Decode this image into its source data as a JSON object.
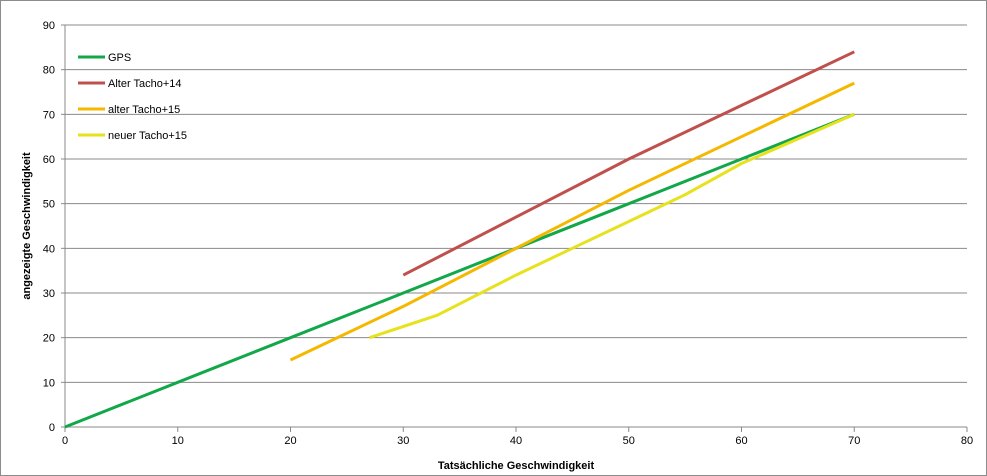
{
  "chart_data": {
    "type": "line",
    "title": "",
    "xlabel": "Tatsächliche  Geschwindigkeit",
    "ylabel": "angezeigte  Geschwindigkeit",
    "xlim": [
      0,
      80
    ],
    "ylim": [
      0,
      90
    ],
    "xticks": [
      "0",
      "10",
      "20",
      "30",
      "40",
      "50",
      "60",
      "70",
      "80"
    ],
    "yticks": [
      "0",
      "10",
      "20",
      "30",
      "40",
      "50",
      "60",
      "70",
      "80",
      "90"
    ],
    "grid": "horizontal",
    "legend_position": "top-left",
    "series": [
      {
        "name": "GPS",
        "color": "#12a84a",
        "x": [
          0,
          10,
          20,
          30,
          40,
          50,
          60,
          70
        ],
        "y": [
          0,
          10,
          20,
          30,
          40,
          50,
          60,
          70
        ]
      },
      {
        "name": "Alter Tacho+14",
        "color": "#c0504d",
        "x": [
          30,
          40,
          50,
          60,
          70
        ],
        "y": [
          34,
          47,
          60,
          72,
          84
        ]
      },
      {
        "name": "alter Tacho+15",
        "color": "#f5b800",
        "x": [
          20,
          30,
          40,
          50,
          60,
          70
        ],
        "y": [
          15,
          27,
          40,
          53,
          65,
          77
        ]
      },
      {
        "name": "neuer Tacho+15",
        "color": "#e6e21e",
        "x": [
          27,
          33,
          40,
          45,
          50,
          55,
          60,
          70
        ],
        "y": [
          20,
          25,
          34,
          40,
          46,
          52,
          59,
          70
        ]
      }
    ]
  }
}
